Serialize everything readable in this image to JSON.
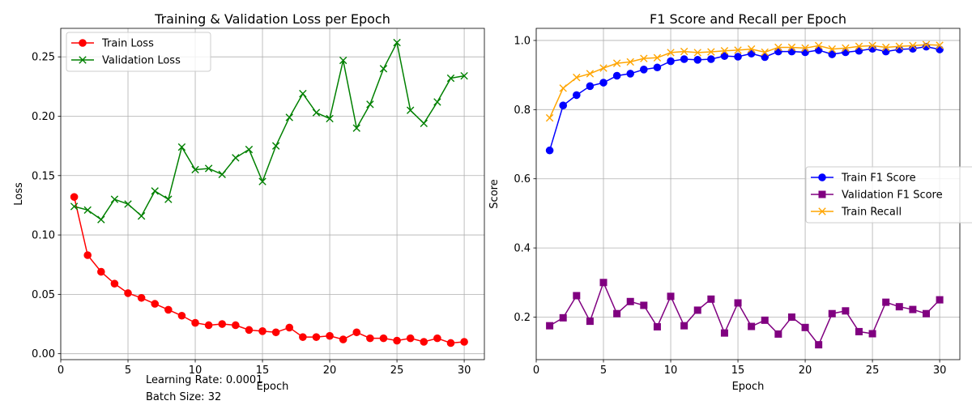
{
  "chart_data": [
    {
      "type": "line",
      "title": "Training & Validation Loss per Epoch",
      "xlabel": "Epoch",
      "ylabel": "Loss",
      "xlim": [
        0,
        31.5
      ],
      "ylim": [
        -0.005,
        0.274
      ],
      "xticks": [
        0,
        5,
        10,
        15,
        20,
        25,
        30
      ],
      "xtick_labels": [
        "0",
        "5",
        "10",
        "15",
        "20",
        "25",
        "30"
      ],
      "yticks": [
        0.0,
        0.05,
        0.1,
        0.15,
        0.2,
        0.25
      ],
      "ytick_labels": [
        "0.00",
        "0.05",
        "0.10",
        "0.15",
        "0.20",
        "0.25"
      ],
      "grid": true,
      "legend_position": "top-left",
      "x": [
        1,
        2,
        3,
        4,
        5,
        6,
        7,
        8,
        9,
        10,
        11,
        12,
        13,
        14,
        15,
        16,
        17,
        18,
        19,
        20,
        21,
        22,
        23,
        24,
        25,
        26,
        27,
        28,
        29,
        30
      ],
      "series": [
        {
          "name": "Train Loss",
          "color": "#ff0000",
          "marker": "circle",
          "values": [
            0.132,
            0.083,
            0.069,
            0.059,
            0.051,
            0.047,
            0.042,
            0.037,
            0.032,
            0.026,
            0.024,
            0.025,
            0.024,
            0.02,
            0.019,
            0.018,
            0.022,
            0.014,
            0.014,
            0.015,
            0.012,
            0.018,
            0.013,
            0.013,
            0.011,
            0.013,
            0.01,
            0.013,
            0.009,
            0.01
          ]
        },
        {
          "name": "Validation Loss",
          "color": "#008000",
          "marker": "x",
          "values": [
            0.124,
            0.121,
            0.113,
            0.13,
            0.126,
            0.116,
            0.137,
            0.13,
            0.174,
            0.155,
            0.156,
            0.151,
            0.165,
            0.172,
            0.145,
            0.175,
            0.199,
            0.219,
            0.203,
            0.198,
            0.247,
            0.19,
            0.21,
            0.24,
            0.262,
            0.205,
            0.194,
            0.212,
            0.232,
            0.234
          ]
        }
      ]
    },
    {
      "type": "line",
      "title": "F1 Score and Recall per Epoch",
      "xlabel": "Epoch",
      "ylabel": "Score",
      "xlim": [
        0,
        31.5
      ],
      "ylim": [
        0.077,
        1.035
      ],
      "xticks": [
        0,
        5,
        10,
        15,
        20,
        25,
        30
      ],
      "xtick_labels": [
        "0",
        "5",
        "10",
        "15",
        "20",
        "25",
        "30"
      ],
      "yticks": [
        0.2,
        0.4,
        0.6,
        0.8,
        1.0
      ],
      "ytick_labels": [
        "0.2",
        "0.4",
        "0.6",
        "0.8",
        "1.0"
      ],
      "grid": true,
      "legend_position": "center-right",
      "x": [
        1,
        2,
        3,
        4,
        5,
        6,
        7,
        8,
        9,
        10,
        11,
        12,
        13,
        14,
        15,
        16,
        17,
        18,
        19,
        20,
        21,
        22,
        23,
        24,
        25,
        26,
        27,
        28,
        29,
        30
      ],
      "series": [
        {
          "name": "Train F1 Score",
          "color": "#0000ff",
          "marker": "circle",
          "values": [
            0.682,
            0.812,
            0.842,
            0.868,
            0.878,
            0.898,
            0.904,
            0.916,
            0.922,
            0.94,
            0.946,
            0.944,
            0.946,
            0.955,
            0.953,
            0.962,
            0.952,
            0.968,
            0.968,
            0.966,
            0.972,
            0.96,
            0.966,
            0.97,
            0.976,
            0.968,
            0.974,
            0.976,
            0.982,
            0.974
          ]
        },
        {
          "name": "Validation F1 Score",
          "color": "#800080",
          "marker": "square",
          "values": [
            0.175,
            0.198,
            0.262,
            0.188,
            0.3,
            0.21,
            0.245,
            0.234,
            0.172,
            0.26,
            0.175,
            0.22,
            0.252,
            0.154,
            0.241,
            0.173,
            0.191,
            0.151,
            0.2,
            0.17,
            0.12,
            0.21,
            0.218,
            0.158,
            0.152,
            0.243,
            0.23,
            0.222,
            0.21,
            0.25
          ]
        },
        {
          "name": "Train Recall",
          "color": "#ffa500",
          "marker": "x",
          "values": [
            0.776,
            0.862,
            0.893,
            0.904,
            0.92,
            0.934,
            0.938,
            0.948,
            0.95,
            0.965,
            0.968,
            0.965,
            0.967,
            0.97,
            0.972,
            0.975,
            0.966,
            0.98,
            0.98,
            0.978,
            0.985,
            0.975,
            0.978,
            0.983,
            0.985,
            0.98,
            0.983,
            0.985,
            0.988,
            0.986
          ]
        }
      ]
    }
  ],
  "annotations": {
    "learning_rate": "Learning Rate: 0.0001",
    "batch_size": "Batch Size: 32"
  }
}
